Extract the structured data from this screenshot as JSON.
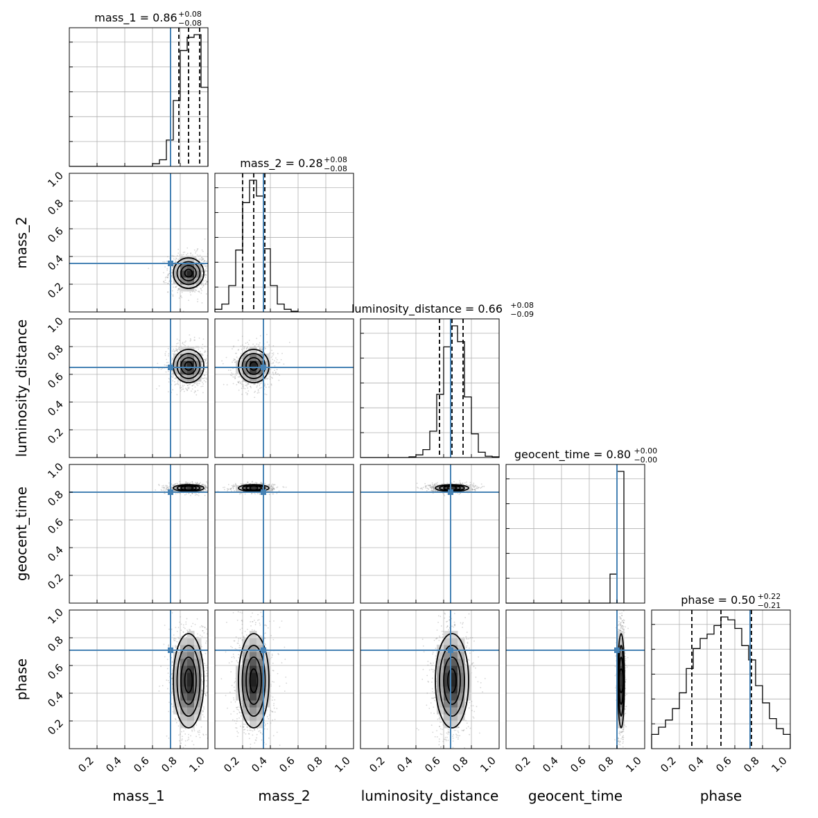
{
  "chart_data": {
    "type": "corner",
    "parameters": [
      "mass_1",
      "mass_2",
      "luminosity_distance",
      "geocent_time",
      "phase"
    ],
    "axis_range": [
      0,
      1
    ],
    "tick_labels": [
      "0.2",
      "0.4",
      "0.6",
      "0.8",
      "1.0"
    ],
    "tick_values": [
      0.2,
      0.4,
      0.6,
      0.8,
      1.0
    ],
    "grid": true,
    "injection_color": "#4682b4",
    "injection_values": {
      "mass_1": 0.73,
      "mass_2": 0.35,
      "luminosity_distance": 0.65,
      "geocent_time": 0.8,
      "phase": 0.71
    },
    "titles": [
      {
        "param": "mass_1",
        "label": "mass_1 = 0.86",
        "plus": "+0.08",
        "minus": "−0.08"
      },
      {
        "param": "mass_2",
        "label": "mass_2 = 0.28",
        "plus": "+0.08",
        "minus": "−0.08"
      },
      {
        "param": "luminosity_distance",
        "label": "luminosity_distance = 0.66",
        "plus": "+0.08",
        "minus": "−0.09"
      },
      {
        "param": "geocent_time",
        "label": "geocent_time = 0.80",
        "plus": "+0.00",
        "minus": "−0.00"
      },
      {
        "param": "phase",
        "label": "phase = 0.50",
        "plus": "+0.22",
        "minus": "−0.21"
      }
    ],
    "quantiles": {
      "mass_1": [
        0.79,
        0.86,
        0.94
      ],
      "mass_2": [
        0.2,
        0.28,
        0.36
      ],
      "luminosity_distance": [
        0.57,
        0.66,
        0.74
      ],
      "geocent_time": [
        0.8,
        0.8,
        0.8
      ],
      "phase": [
        0.29,
        0.5,
        0.72
      ]
    },
    "histograms": {
      "mass_1": {
        "edges_start": 0.6,
        "bin_width": 0.05,
        "counts": [
          0.02,
          0.05,
          0.2,
          0.5,
          0.88,
          0.98,
          1.0,
          0.6,
          0.17
        ]
      },
      "mass_2": {
        "edges_start": 0.0,
        "bin_width": 0.05,
        "counts": [
          0.02,
          0.06,
          0.2,
          0.47,
          0.83,
          1.0,
          0.88,
          0.48,
          0.2,
          0.06,
          0.02,
          0.005
        ]
      },
      "luminosity_distance": {
        "edges_start": 0.35,
        "bin_width": 0.05,
        "counts": [
          0.005,
          0.02,
          0.06,
          0.2,
          0.48,
          0.84,
          1.0,
          0.88,
          0.46,
          0.18,
          0.04,
          0.01,
          0.005
        ]
      },
      "geocent_time": {
        "edges_start": 0.75,
        "bin_width": 0.05,
        "counts": [
          0.22,
          1.0
        ]
      },
      "phase": {
        "edges_start": 0.0,
        "bin_width": 0.05,
        "counts": [
          0.1,
          0.15,
          0.2,
          0.28,
          0.39,
          0.56,
          0.7,
          0.77,
          0.8,
          0.86,
          0.92,
          0.9,
          0.84,
          0.72,
          0.62,
          0.44,
          0.32,
          0.21,
          0.14,
          0.1
        ]
      }
    },
    "scatter": {
      "mass_1": {
        "mean": 0.86,
        "sd": 0.055
      },
      "mass_2": {
        "mean": 0.28,
        "sd": 0.055
      },
      "luminosity_distance": {
        "mean": 0.66,
        "sd": 0.06
      },
      "geocent_time": {
        "mean": 0.83,
        "sd": 0.012
      },
      "phase": {
        "mean": 0.49,
        "sd": 0.17
      }
    }
  }
}
